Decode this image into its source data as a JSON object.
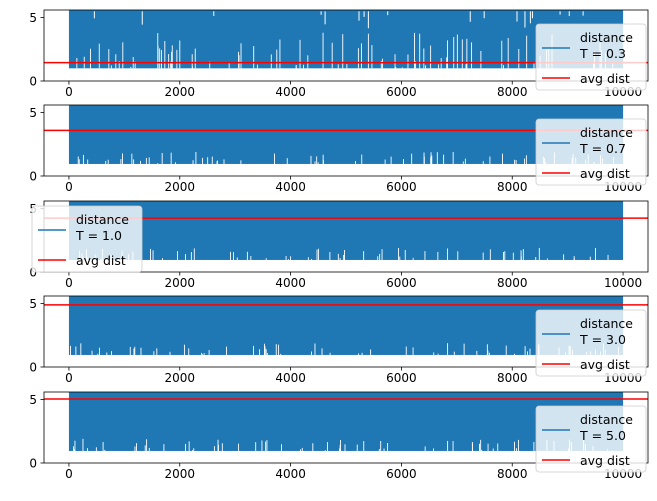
{
  "chart_data": [
    {
      "type": "line",
      "xlim": [
        -450,
        10450
      ],
      "ylim": [
        0,
        5.6
      ],
      "x_ticks": [
        0,
        2000,
        4000,
        6000,
        8000,
        10000
      ],
      "y_ticks": [
        0,
        5
      ],
      "grid": false,
      "legend_placement": "lower right",
      "series": [
        {
          "name": "distance\nT = 0.3",
          "color": "#1f77b4",
          "x_range": [
            0,
            10000
          ],
          "baseline": 1.0,
          "max": 5.6
        },
        {
          "name": "avg dist",
          "color": "#ff0000",
          "hline": 1.45
        }
      ]
    },
    {
      "type": "line",
      "xlim": [
        -450,
        10450
      ],
      "ylim": [
        0,
        5.6
      ],
      "x_ticks": [
        0,
        2000,
        4000,
        6000,
        8000,
        10000
      ],
      "y_ticks": [
        0,
        5
      ],
      "grid": false,
      "legend_placement": "lower right",
      "series": [
        {
          "name": "distance\nT = 0.7",
          "color": "#1f77b4",
          "x_range": [
            0,
            10000
          ],
          "baseline": 0.95,
          "max": 5.6
        },
        {
          "name": "avg dist",
          "color": "#ff0000",
          "hline": 3.6
        }
      ]
    },
    {
      "type": "line",
      "xlim": [
        -450,
        10450
      ],
      "ylim": [
        0,
        5.6
      ],
      "x_ticks": [
        0,
        2000,
        4000,
        6000,
        8000,
        10000
      ],
      "y_ticks": [
        0,
        5
      ],
      "grid": false,
      "legend_placement": "upper left",
      "series": [
        {
          "name": "distance\nT = 1.0",
          "color": "#1f77b4",
          "x_range": [
            0,
            10000
          ],
          "baseline": 0.95,
          "max": 5.6
        },
        {
          "name": "avg dist",
          "color": "#ff0000",
          "hline": 4.25
        }
      ]
    },
    {
      "type": "line",
      "xlim": [
        -450,
        10450
      ],
      "ylim": [
        0,
        5.6
      ],
      "x_ticks": [
        0,
        2000,
        4000,
        6000,
        8000,
        10000
      ],
      "y_ticks": [
        0,
        5
      ],
      "grid": false,
      "legend_placement": "lower right",
      "series": [
        {
          "name": "distance\nT = 3.0",
          "color": "#1f77b4",
          "x_range": [
            0,
            10000
          ],
          "baseline": 0.95,
          "max": 5.6
        },
        {
          "name": "avg dist",
          "color": "#ff0000",
          "hline": 4.9
        }
      ]
    },
    {
      "type": "line",
      "xlim": [
        -450,
        10450
      ],
      "ylim": [
        0,
        5.6
      ],
      "x_ticks": [
        0,
        2000,
        4000,
        6000,
        8000,
        10000
      ],
      "y_ticks": [
        0,
        5
      ],
      "grid": false,
      "legend_placement": "lower right",
      "series": [
        {
          "name": "distance\nT = 5.0",
          "color": "#1f77b4",
          "x_range": [
            0,
            10000
          ],
          "baseline": 0.95,
          "max": 5.6
        },
        {
          "name": "avg dist",
          "color": "#ff0000",
          "hline": 5.05
        }
      ]
    }
  ]
}
